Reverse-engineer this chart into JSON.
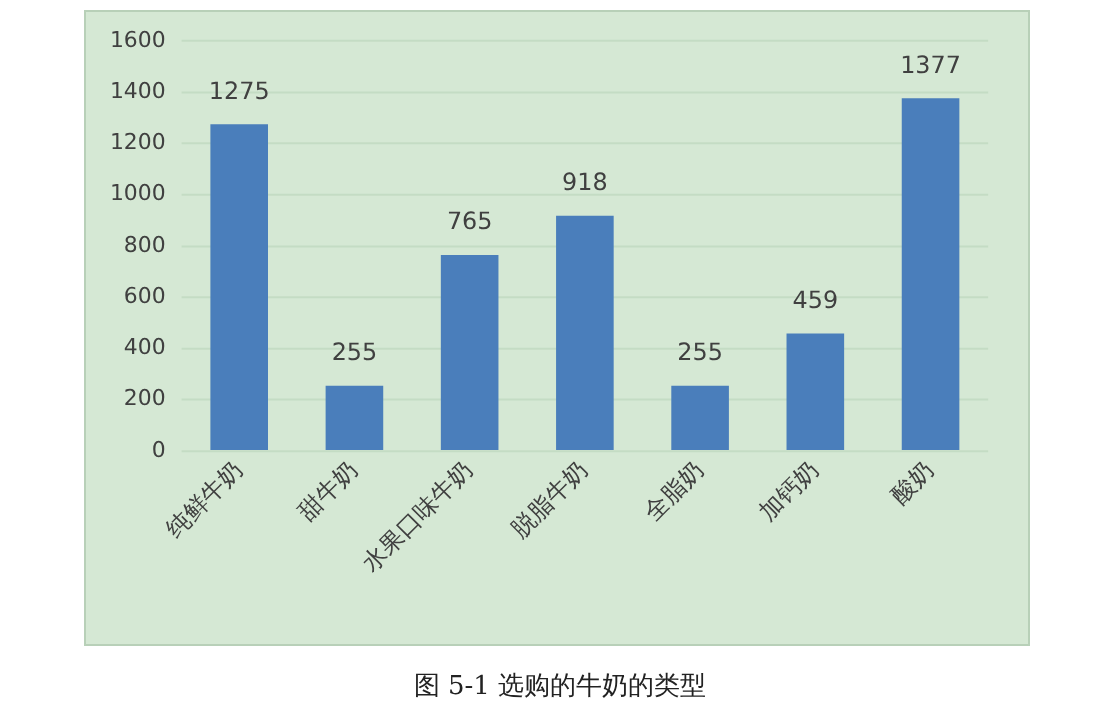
{
  "chart_data": {
    "type": "bar",
    "title": "图 5-1  选购的牛奶的类型",
    "categories": [
      "纯鲜牛奶",
      "甜牛奶",
      "水果口味牛奶",
      "脱脂牛奶",
      "全脂奶",
      "加钙奶",
      "酸奶"
    ],
    "values": [
      1275,
      255,
      765,
      918,
      255,
      459,
      1377
    ],
    "color": "#4a7ebb",
    "ylim": [
      0,
      1600
    ],
    "yticks": [
      0,
      200,
      400,
      600,
      800,
      1000,
      1200,
      1400,
      1600
    ],
    "grid": "y",
    "data_labels": true,
    "legend": false
  }
}
